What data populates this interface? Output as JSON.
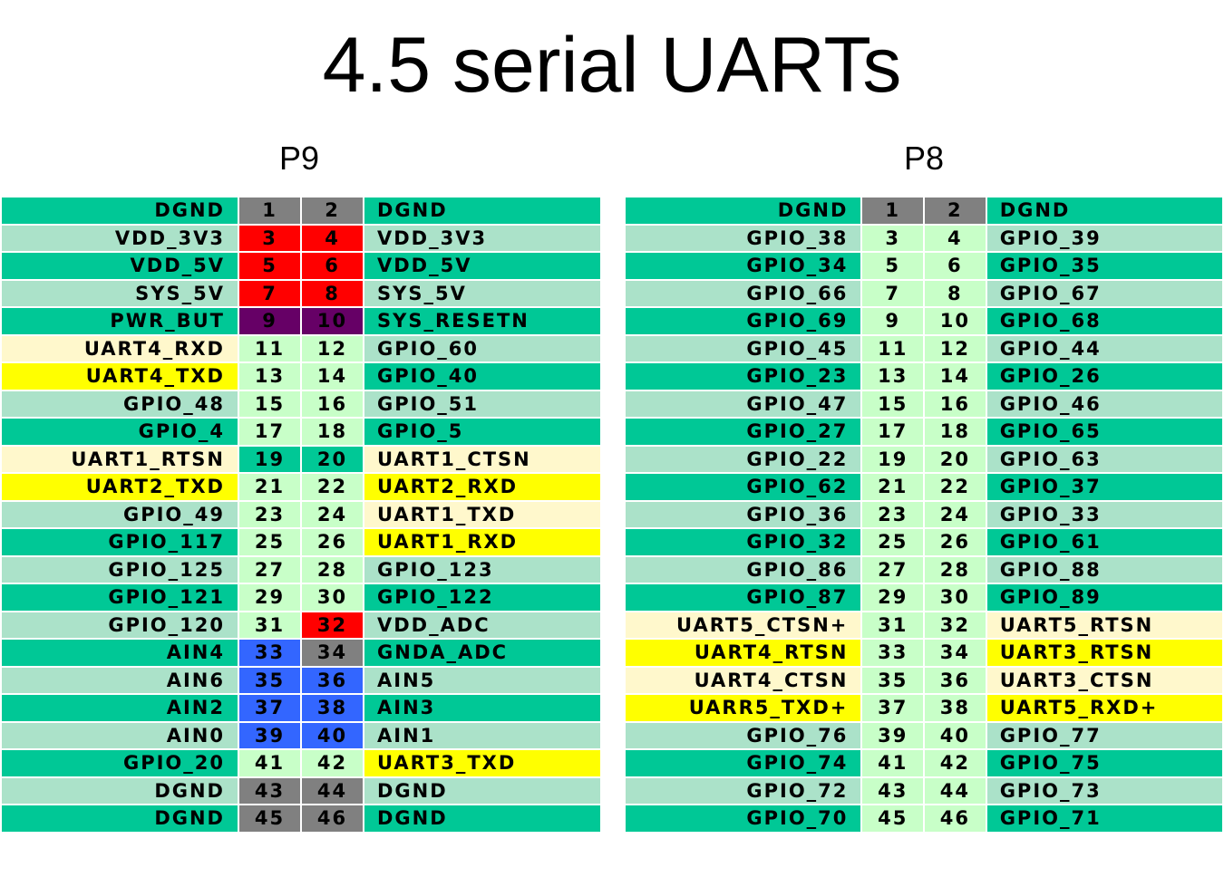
{
  "title": "4.5 serial UARTs",
  "colors": {
    "teal": "#00c896",
    "light_teal": "#abe2c9",
    "pale_green": "#c8ffc8",
    "cream": "#fff8cc",
    "yellow": "#ffff00",
    "red": "#ff0000",
    "purple": "#660066",
    "gray": "#808080",
    "blue": "#3366ff"
  },
  "headers": [
    {
      "name": "P9",
      "rows": [
        {
          "left": "DGND",
          "pin1": "1",
          "pin2": "2",
          "right": "DGND",
          "lc": "teal",
          "p1c": "gray",
          "p2c": "gray",
          "rc": "teal"
        },
        {
          "left": "VDD_3V3",
          "pin1": "3",
          "pin2": "4",
          "right": "VDD_3V3",
          "lc": "light_teal",
          "p1c": "red",
          "p2c": "red",
          "rc": "light_teal"
        },
        {
          "left": "VDD_5V",
          "pin1": "5",
          "pin2": "6",
          "right": "VDD_5V",
          "lc": "teal",
          "p1c": "red",
          "p2c": "red",
          "rc": "teal"
        },
        {
          "left": "SYS_5V",
          "pin1": "7",
          "pin2": "8",
          "right": "SYS_5V",
          "lc": "light_teal",
          "p1c": "red",
          "p2c": "red",
          "rc": "light_teal"
        },
        {
          "left": "PWR_BUT",
          "pin1": "9",
          "pin2": "10",
          "right": "SYS_RESETN",
          "lc": "teal",
          "p1c": "purple",
          "p2c": "purple",
          "rc": "teal"
        },
        {
          "left": "UART4_RXD",
          "pin1": "11",
          "pin2": "12",
          "right": "GPIO_60",
          "lc": "cream",
          "p1c": "pale_green",
          "p2c": "pale_green",
          "rc": "light_teal"
        },
        {
          "left": "UART4_TXD",
          "pin1": "13",
          "pin2": "14",
          "right": "GPIO_40",
          "lc": "yellow",
          "p1c": "pale_green",
          "p2c": "pale_green",
          "rc": "teal"
        },
        {
          "left": "GPIO_48",
          "pin1": "15",
          "pin2": "16",
          "right": "GPIO_51",
          "lc": "light_teal",
          "p1c": "pale_green",
          "p2c": "pale_green",
          "rc": "light_teal"
        },
        {
          "left": "GPIO_4",
          "pin1": "17",
          "pin2": "18",
          "right": "GPIO_5",
          "lc": "teal",
          "p1c": "pale_green",
          "p2c": "pale_green",
          "rc": "teal"
        },
        {
          "left": "UART1_RTSN",
          "pin1": "19",
          "pin2": "20",
          "right": "UART1_CTSN",
          "lc": "cream",
          "p1c": "teal",
          "p2c": "teal",
          "rc": "cream"
        },
        {
          "left": "UART2_TXD",
          "pin1": "21",
          "pin2": "22",
          "right": "UART2_RXD",
          "lc": "yellow",
          "p1c": "pale_green",
          "p2c": "pale_green",
          "rc": "yellow"
        },
        {
          "left": "GPIO_49",
          "pin1": "23",
          "pin2": "24",
          "right": "UART1_TXD",
          "lc": "light_teal",
          "p1c": "pale_green",
          "p2c": "pale_green",
          "rc": "cream"
        },
        {
          "left": "GPIO_117",
          "pin1": "25",
          "pin2": "26",
          "right": "UART1_RXD",
          "lc": "teal",
          "p1c": "pale_green",
          "p2c": "pale_green",
          "rc": "yellow"
        },
        {
          "left": "GPIO_125",
          "pin1": "27",
          "pin2": "28",
          "right": "GPIO_123",
          "lc": "light_teal",
          "p1c": "pale_green",
          "p2c": "pale_green",
          "rc": "light_teal"
        },
        {
          "left": "GPIO_121",
          "pin1": "29",
          "pin2": "30",
          "right": "GPIO_122",
          "lc": "teal",
          "p1c": "pale_green",
          "p2c": "pale_green",
          "rc": "teal"
        },
        {
          "left": "GPIO_120",
          "pin1": "31",
          "pin2": "32",
          "right": "VDD_ADC",
          "lc": "light_teal",
          "p1c": "pale_green",
          "p2c": "red",
          "rc": "light_teal"
        },
        {
          "left": "AIN4",
          "pin1": "33",
          "pin2": "34",
          "right": "GNDA_ADC",
          "lc": "teal",
          "p1c": "blue",
          "p2c": "gray",
          "rc": "teal"
        },
        {
          "left": "AIN6",
          "pin1": "35",
          "pin2": "36",
          "right": "AIN5",
          "lc": "light_teal",
          "p1c": "blue",
          "p2c": "blue",
          "rc": "light_teal"
        },
        {
          "left": "AIN2",
          "pin1": "37",
          "pin2": "38",
          "right": "AIN3",
          "lc": "teal",
          "p1c": "blue",
          "p2c": "blue",
          "rc": "teal"
        },
        {
          "left": "AIN0",
          "pin1": "39",
          "pin2": "40",
          "right": "AIN1",
          "lc": "light_teal",
          "p1c": "blue",
          "p2c": "blue",
          "rc": "light_teal"
        },
        {
          "left": "GPIO_20",
          "pin1": "41",
          "pin2": "42",
          "right": "UART3_TXD",
          "lc": "teal",
          "p1c": "pale_green",
          "p2c": "pale_green",
          "rc": "yellow"
        },
        {
          "left": "DGND",
          "pin1": "43",
          "pin2": "44",
          "right": "DGND",
          "lc": "light_teal",
          "p1c": "gray",
          "p2c": "gray",
          "rc": "light_teal"
        },
        {
          "left": "DGND",
          "pin1": "45",
          "pin2": "46",
          "right": "DGND",
          "lc": "teal",
          "p1c": "gray",
          "p2c": "gray",
          "rc": "teal"
        }
      ]
    },
    {
      "name": "P8",
      "rows": [
        {
          "left": "DGND",
          "pin1": "1",
          "pin2": "2",
          "right": "DGND",
          "lc": "teal",
          "p1c": "gray",
          "p2c": "gray",
          "rc": "teal"
        },
        {
          "left": "GPIO_38",
          "pin1": "3",
          "pin2": "4",
          "right": "GPIO_39",
          "lc": "light_teal",
          "p1c": "pale_green",
          "p2c": "pale_green",
          "rc": "light_teal"
        },
        {
          "left": "GPIO_34",
          "pin1": "5",
          "pin2": "6",
          "right": "GPIO_35",
          "lc": "teal",
          "p1c": "pale_green",
          "p2c": "pale_green",
          "rc": "teal"
        },
        {
          "left": "GPIO_66",
          "pin1": "7",
          "pin2": "8",
          "right": "GPIO_67",
          "lc": "light_teal",
          "p1c": "pale_green",
          "p2c": "pale_green",
          "rc": "light_teal"
        },
        {
          "left": "GPIO_69",
          "pin1": "9",
          "pin2": "10",
          "right": "GPIO_68",
          "lc": "teal",
          "p1c": "pale_green",
          "p2c": "pale_green",
          "rc": "teal"
        },
        {
          "left": "GPIO_45",
          "pin1": "11",
          "pin2": "12",
          "right": "GPIO_44",
          "lc": "light_teal",
          "p1c": "pale_green",
          "p2c": "pale_green",
          "rc": "light_teal"
        },
        {
          "left": "GPIO_23",
          "pin1": "13",
          "pin2": "14",
          "right": "GPIO_26",
          "lc": "teal",
          "p1c": "pale_green",
          "p2c": "pale_green",
          "rc": "teal"
        },
        {
          "left": "GPIO_47",
          "pin1": "15",
          "pin2": "16",
          "right": "GPIO_46",
          "lc": "light_teal",
          "p1c": "pale_green",
          "p2c": "pale_green",
          "rc": "light_teal"
        },
        {
          "left": "GPIO_27",
          "pin1": "17",
          "pin2": "18",
          "right": "GPIO_65",
          "lc": "teal",
          "p1c": "pale_green",
          "p2c": "pale_green",
          "rc": "teal"
        },
        {
          "left": "GPIO_22",
          "pin1": "19",
          "pin2": "20",
          "right": "GPIO_63",
          "lc": "light_teal",
          "p1c": "pale_green",
          "p2c": "pale_green",
          "rc": "light_teal"
        },
        {
          "left": "GPIO_62",
          "pin1": "21",
          "pin2": "22",
          "right": "GPIO_37",
          "lc": "teal",
          "p1c": "pale_green",
          "p2c": "pale_green",
          "rc": "teal"
        },
        {
          "left": "GPIO_36",
          "pin1": "23",
          "pin2": "24",
          "right": "GPIO_33",
          "lc": "light_teal",
          "p1c": "pale_green",
          "p2c": "pale_green",
          "rc": "light_teal"
        },
        {
          "left": "GPIO_32",
          "pin1": "25",
          "pin2": "26",
          "right": "GPIO_61",
          "lc": "teal",
          "p1c": "pale_green",
          "p2c": "pale_green",
          "rc": "teal"
        },
        {
          "left": "GPIO_86",
          "pin1": "27",
          "pin2": "28",
          "right": "GPIO_88",
          "lc": "light_teal",
          "p1c": "pale_green",
          "p2c": "pale_green",
          "rc": "light_teal"
        },
        {
          "left": "GPIO_87",
          "pin1": "29",
          "pin2": "30",
          "right": "GPIO_89",
          "lc": "teal",
          "p1c": "pale_green",
          "p2c": "pale_green",
          "rc": "teal"
        },
        {
          "left": "UART5_CTSN+",
          "pin1": "31",
          "pin2": "32",
          "right": "UART5_RTSN",
          "lc": "cream",
          "p1c": "pale_green",
          "p2c": "pale_green",
          "rc": "cream"
        },
        {
          "left": "UART4_RTSN",
          "pin1": "33",
          "pin2": "34",
          "right": "UART3_RTSN",
          "lc": "yellow",
          "p1c": "pale_green",
          "p2c": "pale_green",
          "rc": "yellow"
        },
        {
          "left": "UART4_CTSN",
          "pin1": "35",
          "pin2": "36",
          "right": "UART3_CTSN",
          "lc": "cream",
          "p1c": "pale_green",
          "p2c": "pale_green",
          "rc": "cream"
        },
        {
          "left": "UARR5_TXD+",
          "pin1": "37",
          "pin2": "38",
          "right": "UART5_RXD+",
          "lc": "yellow",
          "p1c": "pale_green",
          "p2c": "pale_green",
          "rc": "yellow"
        },
        {
          "left": "GPIO_76",
          "pin1": "39",
          "pin2": "40",
          "right": "GPIO_77",
          "lc": "light_teal",
          "p1c": "pale_green",
          "p2c": "pale_green",
          "rc": "light_teal"
        },
        {
          "left": "GPIO_74",
          "pin1": "41",
          "pin2": "42",
          "right": "GPIO_75",
          "lc": "teal",
          "p1c": "pale_green",
          "p2c": "pale_green",
          "rc": "teal"
        },
        {
          "left": "GPIO_72",
          "pin1": "43",
          "pin2": "44",
          "right": "GPIO_73",
          "lc": "light_teal",
          "p1c": "pale_green",
          "p2c": "pale_green",
          "rc": "light_teal"
        },
        {
          "left": "GPIO_70",
          "pin1": "45",
          "pin2": "46",
          "right": "GPIO_71",
          "lc": "teal",
          "p1c": "pale_green",
          "p2c": "pale_green",
          "rc": "teal"
        }
      ]
    }
  ]
}
